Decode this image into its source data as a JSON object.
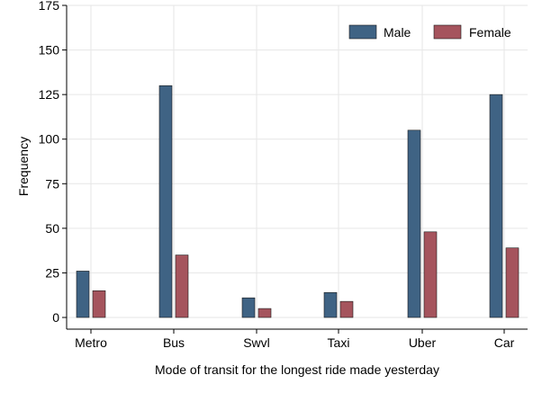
{
  "chart_data": {
    "type": "bar",
    "categories": [
      "Metro",
      "Bus",
      "Swvl",
      "Taxi",
      "Uber",
      "Car"
    ],
    "series": [
      {
        "name": "Male",
        "color": "#3f6384",
        "values": [
          26,
          130,
          11,
          14,
          105,
          125
        ]
      },
      {
        "name": "Female",
        "color": "#a5545d",
        "values": [
          15,
          35,
          5,
          9,
          48,
          39
        ]
      }
    ],
    "title": "",
    "xlabel": "Mode of transit for the longest ride made yesterday",
    "ylabel": "Frequency",
    "ylim": [
      0,
      175
    ],
    "yticks": [
      0,
      25,
      50,
      75,
      100,
      125,
      150,
      175
    ],
    "grid": true,
    "legend_position": "top-right"
  }
}
